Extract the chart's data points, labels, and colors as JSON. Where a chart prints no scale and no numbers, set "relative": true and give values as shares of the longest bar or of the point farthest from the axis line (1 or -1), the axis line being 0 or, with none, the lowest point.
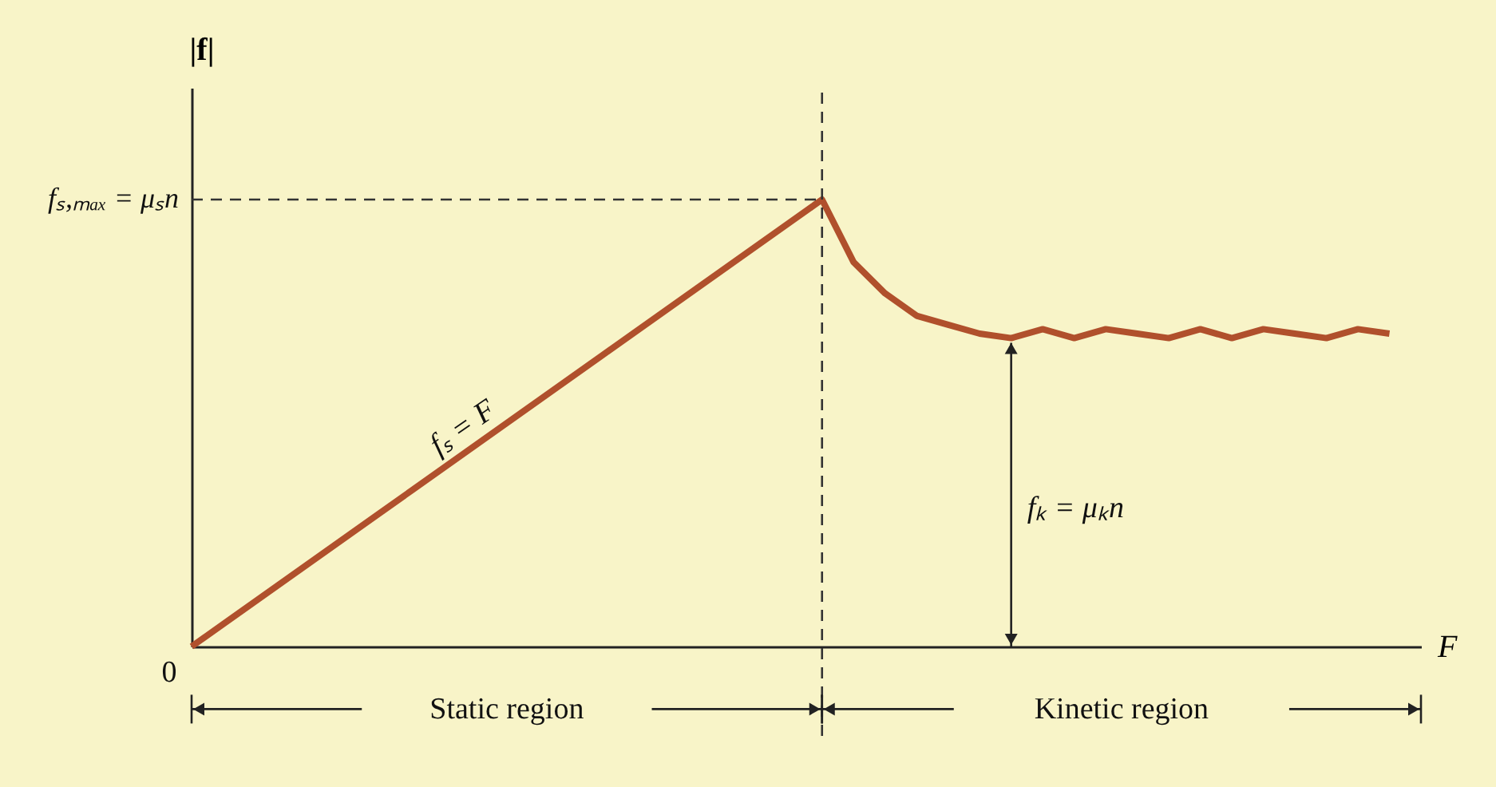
{
  "chart_data": {
    "type": "line",
    "relative": true,
    "xlabel": "F",
    "ylabel": "|f|",
    "color": "#b0502c",
    "categories": [
      null,
      null,
      null,
      null,
      null,
      null,
      null,
      null,
      null,
      null,
      null,
      null,
      null,
      null,
      null,
      null,
      null,
      null,
      null,
      null,
      null,
      null,
      null,
      null,
      null,
      null,
      null,
      null,
      null,
      null,
      null,
      null,
      null,
      null,
      null,
      null,
      null,
      null,
      null
    ],
    "values": [
      0,
      0.05,
      0.1,
      0.15,
      0.2,
      0.25,
      0.3,
      0.35,
      0.4,
      0.45,
      0.5,
      0.55,
      0.6,
      0.65,
      0.7,
      0.75,
      0.8,
      0.85,
      0.9,
      0.95,
      1,
      0.86,
      0.79,
      0.74,
      0.72,
      0.7,
      0.69,
      0.71,
      0.69,
      0.71,
      0.7,
      0.69,
      0.71,
      0.69,
      0.71,
      0.7,
      0.69,
      0.71,
      0.7
    ],
    "ref_lines": [
      {
        "axis": "y",
        "value": 1,
        "label": "fₛ,ₘₐₓ = μₛn",
        "line_style": "dashed"
      }
    ],
    "annotations": [
      "0",
      "Static region",
      "Kinetic region",
      "fₛ = F",
      "fₖ = μₖn"
    ]
  }
}
